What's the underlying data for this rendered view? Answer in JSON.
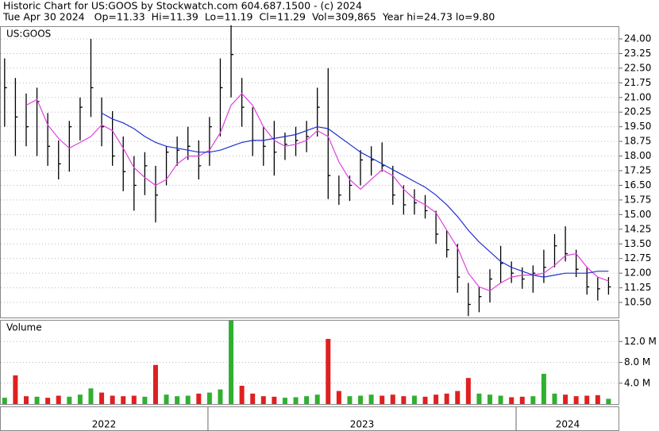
{
  "header": {
    "title": "Historic Chart for US:GOOS by Stockwatch.com 604.687.1500 - (c) 2024",
    "info": [
      "Tue Apr 30 2024",
      "Op=11.33",
      "Hi=11.39",
      "Lo=11.19",
      "Cl=11.29",
      "Vol=309,865",
      "Year hi=24.73",
      "lo=9.80"
    ]
  },
  "chart_data": [
    {
      "type": "ohlc",
      "panel_label": "US:GOOS",
      "grid": true,
      "bar_color": "#000000",
      "xlim": [
        2022.325,
        2024.335
      ],
      "x": [
        2022.34,
        2022.375,
        2022.41,
        2022.445,
        2022.48,
        2022.515,
        2022.55,
        2022.585,
        2022.62,
        2022.655,
        2022.69,
        2022.725,
        2022.76,
        2022.795,
        2022.83,
        2022.865,
        2022.9,
        2022.935,
        2022.97,
        2023.005,
        2023.04,
        2023.075,
        2023.11,
        2023.145,
        2023.18,
        2023.215,
        2023.25,
        2023.285,
        2023.32,
        2023.355,
        2023.39,
        2023.425,
        2023.46,
        2023.495,
        2023.53,
        2023.565,
        2023.6,
        2023.635,
        2023.67,
        2023.705,
        2023.74,
        2023.775,
        2023.81,
        2023.845,
        2023.88,
        2023.915,
        2023.95,
        2023.985,
        2024.02,
        2024.055,
        2024.09,
        2024.125,
        2024.16,
        2024.195,
        2024.23,
        2024.265,
        2024.3
      ],
      "high": [
        23.0,
        22.0,
        21.2,
        21.5,
        20.2,
        18.8,
        19.8,
        21.0,
        24.0,
        21.0,
        20.3,
        19.0,
        18.0,
        18.2,
        17.5,
        18.5,
        19.0,
        19.5,
        18.8,
        20.0,
        23.0,
        24.7,
        22.0,
        20.5,
        19.5,
        19.8,
        19.2,
        19.5,
        19.8,
        21.5,
        22.5,
        17.0,
        17.0,
        18.3,
        18.5,
        18.7,
        17.5,
        16.5,
        16.3,
        16.0,
        15.2,
        14.2,
        13.5,
        11.5,
        11.3,
        12.2,
        13.4,
        12.6,
        12.3,
        12.4,
        13.2,
        14.0,
        14.4,
        13.2,
        12.3,
        11.8,
        11.8
      ],
      "low": [
        19.5,
        18.0,
        18.5,
        18.0,
        17.5,
        16.8,
        17.2,
        18.8,
        20.0,
        18.5,
        17.5,
        16.2,
        15.2,
        16.0,
        14.6,
        16.5,
        17.5,
        17.8,
        16.8,
        17.5,
        19.0,
        21.0,
        19.5,
        18.0,
        17.5,
        17.0,
        17.8,
        18.0,
        18.2,
        19.0,
        15.8,
        15.5,
        15.7,
        16.5,
        17.0,
        17.2,
        15.5,
        15.0,
        15.0,
        14.8,
        13.5,
        12.8,
        11.0,
        9.8,
        10.0,
        10.5,
        11.5,
        11.5,
        11.2,
        11.0,
        11.5,
        12.3,
        12.6,
        11.8,
        10.9,
        10.6,
        10.9
      ],
      "close": [
        21.5,
        20.0,
        19.5,
        20.8,
        18.5,
        17.6,
        19.5,
        20.5,
        21.5,
        19.5,
        18.0,
        17.2,
        16.5,
        17.5,
        16.0,
        18.2,
        18.3,
        18.5,
        17.5,
        19.5,
        21.5,
        23.2,
        20.5,
        18.8,
        18.5,
        18.2,
        18.6,
        18.8,
        19.0,
        20.5,
        17.0,
        16.0,
        16.5,
        17.8,
        17.8,
        17.5,
        16.0,
        15.5,
        15.6,
        15.2,
        14.0,
        13.2,
        11.8,
        10.4,
        10.8,
        11.7,
        12.5,
        12.0,
        11.7,
        12.0,
        12.3,
        13.4,
        13.0,
        12.2,
        11.3,
        11.2,
        11.3
      ],
      "series": [
        {
          "color": "#e040e0",
          "values": [
            null,
            null,
            20.6,
            20.9,
            19.6,
            18.9,
            18.4,
            18.7,
            19.0,
            19.6,
            19.3,
            18.4,
            17.4,
            16.9,
            16.5,
            16.8,
            17.6,
            18.0,
            18.0,
            18.3,
            19.2,
            20.6,
            21.2,
            20.6,
            19.5,
            18.8,
            18.5,
            18.6,
            18.8,
            19.3,
            19.0,
            17.7,
            16.8,
            16.3,
            16.8,
            17.3,
            17.0,
            16.3,
            15.8,
            15.5,
            15.1,
            14.2,
            13.3,
            12.0,
            11.3,
            11.1,
            11.5,
            11.8,
            11.9,
            11.9,
            12.0,
            12.4,
            12.9,
            13.0,
            12.3,
            11.8,
            11.6
          ]
        },
        {
          "color": "#2030d0",
          "values": [
            null,
            null,
            null,
            null,
            null,
            null,
            null,
            null,
            null,
            20.2,
            19.9,
            19.7,
            19.4,
            19.0,
            18.7,
            18.5,
            18.4,
            18.3,
            18.2,
            18.2,
            18.3,
            18.5,
            18.7,
            18.8,
            18.8,
            18.9,
            19.0,
            19.1,
            19.3,
            19.5,
            19.4,
            19.0,
            18.6,
            18.2,
            17.9,
            17.6,
            17.3,
            17.0,
            16.7,
            16.4,
            16.0,
            15.5,
            14.9,
            14.2,
            13.6,
            13.1,
            12.6,
            12.3,
            12.1,
            11.9,
            11.8,
            11.9,
            12.0,
            12.0,
            12.0,
            12.1,
            12.1
          ]
        }
      ],
      "ylim": [
        9.73,
        24.61
      ],
      "yticks": [
        {
          "value": 10.5,
          "label": "10.50"
        },
        {
          "value": 11.25,
          "label": "11.25"
        },
        {
          "value": 12,
          "label": "12.00"
        },
        {
          "value": 12.75,
          "label": "12.75"
        },
        {
          "value": 13.5,
          "label": "13.50"
        },
        {
          "value": 14.25,
          "label": "14.25"
        },
        {
          "value": 15,
          "label": "15.00"
        },
        {
          "value": 15.75,
          "label": "15.75"
        },
        {
          "value": 16.5,
          "label": "16.50"
        },
        {
          "value": 17.25,
          "label": "17.25"
        },
        {
          "value": 18,
          "label": "18.00"
        },
        {
          "value": 18.75,
          "label": "18.75"
        },
        {
          "value": 19.5,
          "label": "19.50"
        },
        {
          "value": 20.25,
          "label": "20.25"
        },
        {
          "value": 21,
          "label": "21.00"
        },
        {
          "value": 21.75,
          "label": "21.75"
        },
        {
          "value": 22.5,
          "label": "22.50"
        },
        {
          "value": 23.25,
          "label": "23.25"
        },
        {
          "value": 24,
          "label": "24.00"
        }
      ]
    },
    {
      "type": "volume",
      "panel_label": "Volume",
      "grid": true,
      "up_color": "#30b030",
      "down_color": "#e02020",
      "values": [
        1.2,
        5.5,
        1.5,
        1.4,
        1.2,
        1.6,
        1.4,
        1.8,
        3.0,
        2.2,
        1.6,
        1.5,
        1.6,
        1.4,
        7.5,
        1.8,
        1.5,
        1.6,
        2.0,
        2.2,
        2.8,
        16.0,
        3.5,
        2.0,
        1.5,
        1.4,
        1.2,
        1.3,
        1.5,
        1.8,
        12.5,
        2.5,
        1.5,
        1.6,
        1.8,
        1.6,
        1.8,
        1.5,
        1.6,
        1.4,
        1.8,
        2.0,
        2.5,
        5.0,
        2.0,
        1.8,
        1.6,
        1.3,
        1.4,
        1.5,
        5.8,
        2.0,
        1.8,
        1.5,
        1.6,
        1.7,
        1.0
      ],
      "ylim": [
        0,
        16
      ],
      "yticks": [
        {
          "value": 4,
          "label": "4.0 M"
        },
        {
          "value": 8,
          "label": "8.0 M"
        },
        {
          "value": 12,
          "label": "12.0 M"
        }
      ],
      "year_bounds": [
        2023,
        2024
      ],
      "year_labels": [
        "2022",
        "2023",
        "2024"
      ]
    }
  ]
}
